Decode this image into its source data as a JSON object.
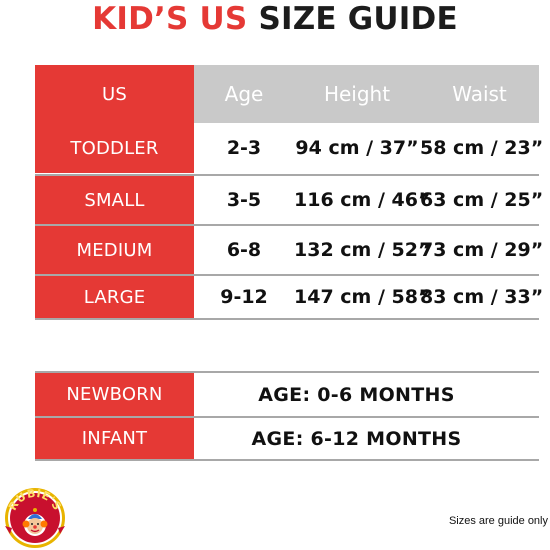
{
  "title": {
    "part1": "KID’S US",
    "part2": "SIZE GUIDE"
  },
  "size_table": {
    "headers": {
      "us": "US",
      "age": "Age",
      "height": "Height",
      "waist": "Waist"
    },
    "rows": [
      {
        "size": "TODDLER",
        "age": "2-3",
        "height": "94 cm / 37”",
        "waist": "58 cm / 23”"
      },
      {
        "size": "SMALL",
        "age": "3-5",
        "height": "116 cm / 46”",
        "waist": "63 cm / 25”"
      },
      {
        "size": "MEDIUM",
        "age": "6-8",
        "height": "132 cm / 52”",
        "waist": "73 cm / 29”"
      },
      {
        "size": "LARGE",
        "age": "9-12",
        "height": "147 cm / 58”",
        "waist": "83 cm / 33”"
      }
    ]
  },
  "infant_table": {
    "rows": [
      {
        "size": "NEWBORN",
        "age": "AGE: 0-6 MONTHS"
      },
      {
        "size": "INFANT",
        "age": "AGE: 6-12 MONTHS"
      }
    ]
  },
  "logo": {
    "text": "RUBIE'S",
    "colors": {
      "outer": "#e8b400",
      "inner": "#c8102e",
      "face": "#f3c79a"
    }
  },
  "footer": {
    "note": "Sizes are guide only"
  },
  "colors": {
    "accent_red": "#e53935",
    "header_gray": "#c9c9c9",
    "rule_gray": "#a8a8a8",
    "text_dark": "#111111"
  }
}
